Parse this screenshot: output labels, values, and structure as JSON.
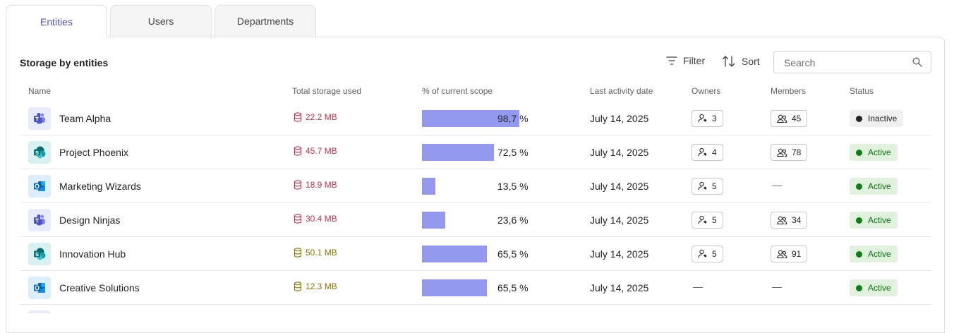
{
  "tabs": [
    {
      "label": "Entities",
      "active": true
    },
    {
      "label": "Users",
      "active": false
    },
    {
      "label": "Departments",
      "active": false
    }
  ],
  "section": {
    "title": "Storage by entities"
  },
  "toolbar": {
    "filter_label": "Filter",
    "sort_label": "Sort",
    "search_placeholder": "Search"
  },
  "columns": {
    "name": "Name",
    "storage": "Total storage used",
    "scope": "% of current scope",
    "last_activity": "Last activity date",
    "owners": "Owners",
    "members": "Members",
    "status": "Status"
  },
  "rows": [
    {
      "app": "teams",
      "name": "Team Alpha",
      "storage": "22.2 MB",
      "storage_color": "#c4314b",
      "scope_pct": 98.7,
      "scope_label": "98,7 %",
      "date": "July 14, 2025",
      "owners": "3",
      "members": "45",
      "status": "Inactive"
    },
    {
      "app": "sharepoint",
      "name": "Project Phoenix",
      "storage": "45.7 MB",
      "storage_color": "#c4314b",
      "scope_pct": 72.5,
      "scope_label": "72,5 %",
      "date": "July 14, 2025",
      "owners": "4",
      "members": "78",
      "status": "Active"
    },
    {
      "app": "outlook",
      "name": "Marketing Wizards",
      "storage": "18.9 MB",
      "storage_color": "#c4314b",
      "scope_pct": 13.5,
      "scope_label": "13,5 %",
      "date": "July 14, 2025",
      "owners": "5",
      "members": "—",
      "status": "Active"
    },
    {
      "app": "teams",
      "name": "Design Ninjas",
      "storage": "30.4 MB",
      "storage_color": "#c4314b",
      "scope_pct": 23.6,
      "scope_label": "23,6 %",
      "date": "July 14, 2025",
      "owners": "5",
      "members": "34",
      "status": "Active"
    },
    {
      "app": "sharepoint",
      "name": "Innovation Hub",
      "storage": "50.1 MB",
      "storage_color": "#8a7400",
      "scope_pct": 65.5,
      "scope_label": "65,5 %",
      "date": "July 14, 2025",
      "owners": "5",
      "members": "91",
      "status": "Active"
    },
    {
      "app": "outlook",
      "name": "Creative Solutions",
      "storage": "12.3 MB",
      "storage_color": "#8a7400",
      "scope_pct": 65.5,
      "scope_label": "65,5 %",
      "date": "July 14, 2025",
      "owners": "—",
      "members": "—",
      "status": "Active"
    }
  ],
  "colors": {
    "accent": "#4f52b2",
    "bar": "#9499f0",
    "active_bg": "#e0f1de",
    "active_text": "#0e700e",
    "active_dot": "#107c10",
    "inactive_bg": "#f0f0f0",
    "inactive_text": "#242424",
    "inactive_dot": "#242424"
  },
  "icons": {
    "filter": "filter-icon",
    "sort": "sort-icon",
    "search": "search-icon",
    "storage": "database-icon",
    "owner": "owner-icon",
    "members": "members-icon"
  }
}
